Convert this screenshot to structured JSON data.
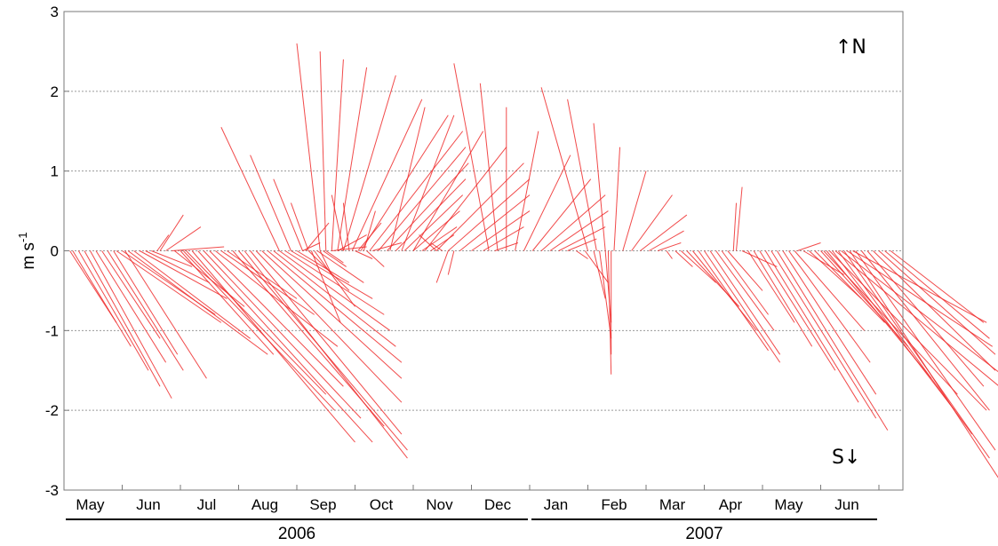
{
  "chart_data": {
    "type": "line",
    "subtype": "stick-vector-plot",
    "title": "",
    "xlabel": "",
    "ylabel": "m s",
    "ylabel_superscript": "-1",
    "ylim": [
      -3,
      3
    ],
    "yticks": [
      "3",
      "2",
      "1",
      "0",
      "-1",
      "-2",
      "-3"
    ],
    "grid": "horizontal dotted at integer values",
    "annotations": {
      "north": "↑N",
      "south": "S↓"
    },
    "colors": {
      "sticks": "#ee2a2a",
      "grid": "#9a9a9a",
      "axes": "#7a7a7a"
    },
    "months": [
      "May",
      "Jun",
      "Jul",
      "Aug",
      "Sep",
      "Oct",
      "Nov",
      "Dec",
      "Jan",
      "Feb",
      "Mar",
      "Apr",
      "May",
      "Jun"
    ],
    "years": [
      {
        "label": "2006",
        "from_month": 0,
        "to_month": 7
      },
      {
        "label": "2007",
        "from_month": 8,
        "to_month": 13
      }
    ],
    "x_range_months": [
      0,
      14.3
    ],
    "vectors_note": "each stick starts at (t, 0); u = eastward offset in month units, v = northward component in m s-1",
    "vectors": [
      [
        0.0,
        0.0,
        -0.02
      ],
      [
        0.1,
        0.8,
        -0.9
      ],
      [
        0.15,
        1.0,
        -1.2
      ],
      [
        0.25,
        1.2,
        -1.5
      ],
      [
        0.35,
        1.3,
        -1.7
      ],
      [
        0.45,
        1.4,
        -1.85
      ],
      [
        0.55,
        1.2,
        -1.4
      ],
      [
        0.65,
        1.0,
        -1.1
      ],
      [
        0.75,
        1.3,
        -1.5
      ],
      [
        0.85,
        1.1,
        -1.3
      ],
      [
        0.9,
        1.8,
        -0.9
      ],
      [
        1.0,
        1.6,
        -0.8
      ],
      [
        1.05,
        1.4,
        -1.6
      ],
      [
        1.1,
        2.4,
        -1.3
      ],
      [
        1.2,
        2.0,
        -1.1
      ],
      [
        1.3,
        1.5,
        -0.6
      ],
      [
        1.4,
        1.1,
        -0.4
      ],
      [
        1.5,
        0.7,
        -0.2
      ],
      [
        1.6,
        0.2,
        0.2
      ],
      [
        1.65,
        0.4,
        0.45
      ],
      [
        1.75,
        0.6,
        0.3
      ],
      [
        1.85,
        0.9,
        0.05
      ],
      [
        1.9,
        1.2,
        -0.7
      ],
      [
        2.0,
        1.6,
        -1.3
      ],
      [
        2.05,
        2.6,
        -2.0
      ],
      [
        2.1,
        2.4,
        -1.8
      ],
      [
        2.2,
        2.8,
        -2.4
      ],
      [
        2.3,
        3.0,
        -2.4
      ],
      [
        2.4,
        2.7,
        -2.1
      ],
      [
        2.5,
        2.3,
        -1.7
      ],
      [
        2.6,
        2.1,
        -1.2
      ],
      [
        2.7,
        1.6,
        -0.8
      ],
      [
        2.8,
        1.2,
        -0.6
      ],
      [
        2.9,
        2.6,
        -2.2
      ],
      [
        3.0,
        2.9,
        -2.5
      ],
      [
        3.1,
        2.8,
        -2.6
      ],
      [
        3.2,
        2.6,
        -2.3
      ],
      [
        3.3,
        2.5,
        -1.9
      ],
      [
        3.4,
        2.4,
        -1.6
      ],
      [
        3.5,
        2.3,
        -1.4
      ],
      [
        3.6,
        2.1,
        -1.2
      ],
      [
        3.7,
        1.9,
        -1.0
      ],
      [
        3.8,
        1.7,
        -0.8
      ],
      [
        3.9,
        1.4,
        -0.6
      ],
      [
        4.0,
        0.9,
        -0.4
      ],
      [
        4.1,
        0.3,
        0.1
      ],
      [
        4.15,
        0.4,
        0.35
      ],
      [
        4.2,
        0.7,
        -0.5
      ],
      [
        4.25,
        0.5,
        -0.9
      ],
      [
        4.3,
        0.7,
        -0.7
      ],
      [
        4.35,
        0.8,
        -0.4
      ],
      [
        4.45,
        0.4,
        -0.2
      ],
      [
        3.7,
        -1.0,
        1.55
      ],
      [
        3.9,
        -0.7,
        1.2
      ],
      [
        4.1,
        -0.5,
        0.9
      ],
      [
        4.2,
        -0.3,
        0.6
      ],
      [
        4.4,
        0.2,
        -0.3
      ],
      [
        4.5,
        0.3,
        -0.15
      ],
      [
        4.6,
        0.6,
        0.05
      ],
      [
        4.7,
        0.5,
        0.2
      ],
      [
        4.8,
        -0.2,
        0.7
      ],
      [
        4.9,
        -0.1,
        0.6
      ],
      [
        5.0,
        0.3,
        -0.1
      ],
      [
        5.05,
        0.4,
        0.35
      ],
      [
        5.15,
        0.2,
        0.5
      ],
      [
        5.2,
        0.3,
        -0.2
      ],
      [
        5.3,
        0.5,
        0.1
      ],
      [
        4.4,
        -0.4,
        2.6
      ],
      [
        4.5,
        -0.1,
        2.5
      ],
      [
        4.6,
        0.2,
        2.4
      ],
      [
        4.7,
        0.5,
        2.3
      ],
      [
        4.8,
        0.9,
        2.2
      ],
      [
        4.95,
        1.2,
        1.9
      ],
      [
        5.1,
        1.5,
        1.7
      ],
      [
        5.25,
        1.6,
        1.5
      ],
      [
        5.4,
        1.5,
        1.3
      ],
      [
        5.55,
        1.4,
        1.1
      ],
      [
        5.7,
        1.2,
        0.9
      ],
      [
        5.85,
        1.0,
        0.7
      ],
      [
        6.0,
        0.8,
        0.5
      ],
      [
        6.15,
        0.6,
        0.3
      ],
      [
        6.3,
        0.4,
        0.2
      ],
      [
        6.4,
        -0.3,
        0.2
      ],
      [
        6.5,
        -0.2,
        0.1
      ],
      [
        6.6,
        -0.2,
        -0.4
      ],
      [
        6.7,
        -0.1,
        -0.3
      ],
      [
        5.6,
        0.6,
        1.8
      ],
      [
        5.8,
        0.9,
        1.7
      ],
      [
        6.0,
        1.2,
        1.5
      ],
      [
        6.2,
        1.4,
        1.3
      ],
      [
        6.4,
        1.5,
        1.1
      ],
      [
        6.6,
        1.4,
        0.9
      ],
      [
        6.8,
        1.2,
        0.7
      ],
      [
        7.0,
        1.0,
        0.5
      ],
      [
        7.2,
        0.7,
        0.3
      ],
      [
        7.4,
        0.4,
        0.1
      ],
      [
        7.3,
        -0.6,
        2.35
      ],
      [
        7.45,
        -0.3,
        2.1
      ],
      [
        7.6,
        0.0,
        1.8
      ],
      [
        7.75,
        0.4,
        1.5
      ],
      [
        7.9,
        0.8,
        1.2
      ],
      [
        8.05,
        1.0,
        0.9
      ],
      [
        8.2,
        1.1,
        0.7
      ],
      [
        8.35,
        1.0,
        0.5
      ],
      [
        8.5,
        0.8,
        0.3
      ],
      [
        8.65,
        0.5,
        0.15
      ],
      [
        8.8,
        0.2,
        -0.1
      ],
      [
        8.95,
        0.4,
        -0.4
      ],
      [
        9.1,
        0.2,
        -0.6
      ],
      [
        9.2,
        0.2,
        -1.1
      ],
      [
        9.3,
        0.1,
        -0.9
      ],
      [
        9.35,
        0.05,
        -1.55
      ],
      [
        9.4,
        0.0,
        -1.3
      ],
      [
        9.0,
        -0.8,
        2.05
      ],
      [
        9.15,
        -0.5,
        1.9
      ],
      [
        9.3,
        -0.2,
        1.6
      ],
      [
        9.45,
        0.1,
        1.3
      ],
      [
        9.6,
        0.4,
        1.0
      ],
      [
        9.75,
        0.7,
        0.7
      ],
      [
        9.9,
        0.8,
        0.45
      ],
      [
        10.05,
        0.6,
        0.25
      ],
      [
        10.2,
        0.4,
        0.1
      ],
      [
        10.35,
        0.1,
        -0.1
      ],
      [
        10.5,
        0.3,
        -0.2
      ],
      [
        10.6,
        0.6,
        -0.4
      ],
      [
        10.7,
        0.9,
        -0.7
      ],
      [
        10.8,
        1.1,
        -1.0
      ],
      [
        10.9,
        1.2,
        -1.25
      ],
      [
        11.0,
        1.3,
        -1.4
      ],
      [
        11.1,
        1.2,
        -1.3
      ],
      [
        11.2,
        1.0,
        -1.0
      ],
      [
        11.3,
        0.8,
        -0.8
      ],
      [
        11.4,
        0.6,
        -0.5
      ],
      [
        11.5,
        0.05,
        0.6
      ],
      [
        11.55,
        0.1,
        0.8
      ],
      [
        11.65,
        0.6,
        -0.2
      ],
      [
        11.75,
        0.8,
        -0.9
      ],
      [
        11.85,
        1.0,
        -1.2
      ],
      [
        11.95,
        1.3,
        -1.5
      ],
      [
        12.05,
        1.6,
        -1.9
      ],
      [
        12.15,
        1.8,
        -2.1
      ],
      [
        12.25,
        1.9,
        -2.25
      ],
      [
        12.35,
        1.6,
        -1.8
      ],
      [
        12.45,
        1.4,
        -1.4
      ],
      [
        12.55,
        1.2,
        -1.0
      ],
      [
        12.6,
        0.4,
        0.1
      ],
      [
        12.7,
        0.7,
        -0.3
      ],
      [
        12.8,
        0.9,
        -0.6
      ],
      [
        12.9,
        1.2,
        -0.9
      ],
      [
        13.0,
        1.5,
        -1.2
      ],
      [
        13.1,
        1.8,
        -1.6
      ],
      [
        13.2,
        2.1,
        -2.0
      ],
      [
        13.3,
        2.3,
        -2.3
      ],
      [
        13.4,
        2.5,
        -2.6
      ],
      [
        13.5,
        2.6,
        -2.9
      ],
      [
        13.6,
        2.4,
        -2.5
      ],
      [
        13.7,
        2.2,
        -2.0
      ],
      [
        13.8,
        2.0,
        -1.7
      ],
      [
        13.9,
        2.1,
        -1.5
      ],
      [
        14.0,
        2.0,
        -1.3
      ],
      [
        14.1,
        1.8,
        -1.1
      ],
      [
        14.2,
        1.6,
        -0.9
      ],
      [
        13.05,
        2.3,
        -1.8
      ],
      [
        13.15,
        2.7,
        -2.0
      ],
      [
        13.25,
        2.9,
        -1.75
      ],
      [
        13.35,
        2.85,
        -1.6
      ],
      [
        13.45,
        2.5,
        -1.2
      ],
      [
        13.55,
        2.3,
        -0.9
      ]
    ]
  }
}
